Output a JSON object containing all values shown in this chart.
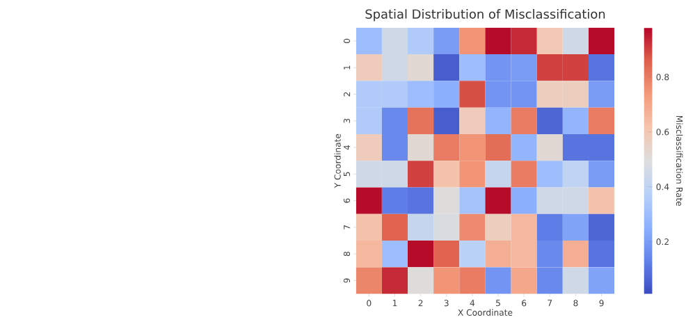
{
  "chart_data": {
    "type": "heatmap",
    "title": "Spatial Distribution of Misclassification",
    "xlabel": "X Coordinate",
    "ylabel": "Y Coordinate",
    "clabel": "Misclassification Rate",
    "categories": [
      "0",
      "1",
      "2",
      "3",
      "4",
      "5",
      "6",
      "7",
      "8",
      "9"
    ],
    "y_categories": [
      "0",
      "1",
      "2",
      "3",
      "4",
      "5",
      "6",
      "7",
      "8",
      "9"
    ],
    "cells": [
      [
        0.3,
        0.45,
        0.35,
        0.2,
        0.75,
        0.97,
        0.93,
        0.6,
        0.45,
        0.97
      ],
      [
        0.58,
        0.45,
        0.52,
        0.05,
        0.3,
        0.18,
        0.2,
        0.9,
        0.9,
        0.1
      ],
      [
        0.35,
        0.35,
        0.3,
        0.25,
        0.88,
        0.18,
        0.18,
        0.57,
        0.57,
        0.2
      ],
      [
        0.35,
        0.15,
        0.82,
        0.05,
        0.58,
        0.27,
        0.8,
        0.07,
        0.27,
        0.8
      ],
      [
        0.58,
        0.15,
        0.52,
        0.8,
        0.75,
        0.83,
        0.27,
        0.52,
        0.1,
        0.1
      ],
      [
        0.45,
        0.45,
        0.9,
        0.62,
        0.75,
        0.42,
        0.8,
        0.3,
        0.4,
        0.2
      ],
      [
        0.97,
        0.12,
        0.1,
        0.5,
        0.32,
        0.97,
        0.25,
        0.45,
        0.45,
        0.62
      ],
      [
        0.62,
        0.85,
        0.42,
        0.48,
        0.77,
        0.57,
        0.65,
        0.12,
        0.22,
        0.07
      ],
      [
        0.65,
        0.3,
        0.97,
        0.85,
        0.38,
        0.68,
        0.65,
        0.15,
        0.68,
        0.1
      ],
      [
        0.78,
        0.93,
        0.5,
        0.75,
        0.8,
        0.18,
        0.7,
        0.15,
        0.45,
        0.22
      ]
    ],
    "clim": [
      0.01,
      0.98
    ],
    "cticks": [
      0.2,
      0.4,
      0.6,
      0.8
    ]
  }
}
